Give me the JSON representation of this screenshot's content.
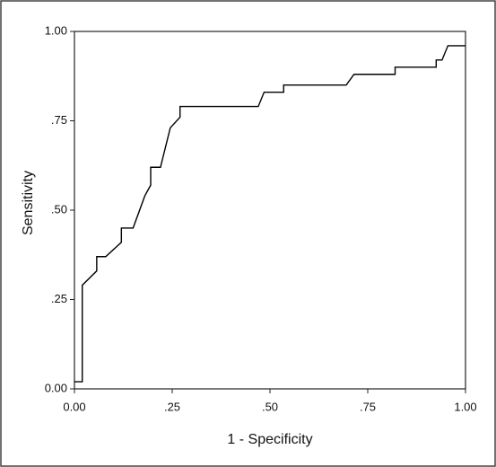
{
  "chart_data": {
    "type": "line",
    "x_label": "1 - Specificity",
    "y_label": "Sensitivity",
    "x": [
      0,
      0.02,
      0.02,
      0.057,
      0.057,
      0.08,
      0.12,
      0.12,
      0.15,
      0.18,
      0.195,
      0.195,
      0.22,
      0.245,
      0.27,
      0.27,
      0.47,
      0.485,
      0.535,
      0.535,
      0.695,
      0.715,
      0.82,
      0.82,
      0.925,
      0.925,
      0.94,
      0.955,
      1.0
    ],
    "values": [
      0.02,
      0.02,
      0.29,
      0.33,
      0.37,
      0.37,
      0.41,
      0.45,
      0.45,
      0.54,
      0.57,
      0.62,
      0.62,
      0.73,
      0.76,
      0.79,
      0.79,
      0.83,
      0.83,
      0.85,
      0.85,
      0.88,
      0.88,
      0.9,
      0.9,
      0.92,
      0.92,
      0.96,
      0.96
    ],
    "color": "#000000",
    "xlim": [
      0,
      1
    ],
    "ylim": [
      0,
      1
    ],
    "xticks": [
      {
        "value": 0,
        "label": "0.00"
      },
      {
        "value": 0.25,
        "label": ".25"
      },
      {
        "value": 0.5,
        "label": ".50"
      },
      {
        "value": 0.75,
        "label": ".75"
      },
      {
        "value": 1,
        "label": "1.00"
      }
    ],
    "yticks": [
      {
        "value": 0,
        "label": "0.00"
      },
      {
        "value": 0.25,
        "label": ".25"
      },
      {
        "value": 0.5,
        "label": ".50"
      },
      {
        "value": 0.75,
        "label": ".75"
      },
      {
        "value": 1,
        "label": "1.00"
      }
    ]
  }
}
